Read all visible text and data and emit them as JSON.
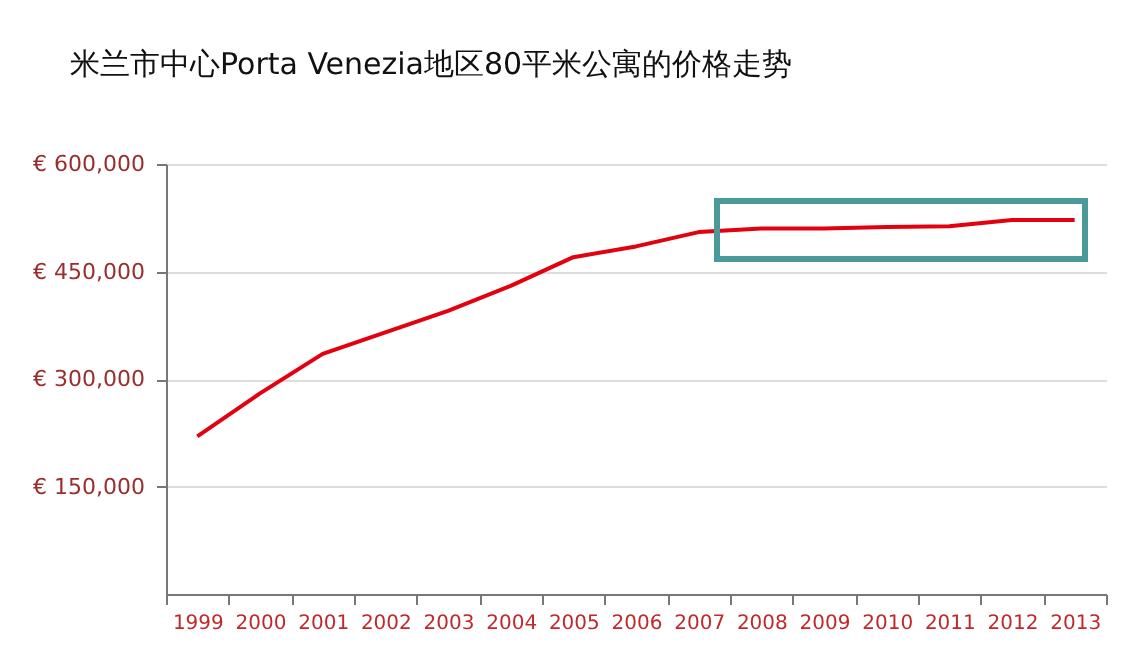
{
  "chart_data": {
    "type": "line",
    "title": "米兰市中心Porta Venezia地区80平米公寓的价格走势",
    "categories": [
      "1999",
      "2000",
      "2001",
      "2002",
      "2003",
      "2004",
      "2005",
      "2006",
      "2007",
      "2008",
      "2009",
      "2010",
      "2011",
      "2012",
      "2013"
    ],
    "series": [
      {
        "color": "#e3000f",
        "values": [
          220000,
          280000,
          335000,
          365000,
          395000,
          430000,
          470000,
          485000,
          505000,
          510000,
          510000,
          512000,
          513000,
          522000,
          522000
        ]
      }
    ],
    "ylim": [
      0,
      600000
    ],
    "yticks": [
      {
        "value": 150000,
        "label": "€ 150,000"
      },
      {
        "value": 300000,
        "label": "€ 300,000"
      },
      {
        "value": 450000,
        "label": "€ 450,000"
      },
      {
        "value": 600000,
        "label": "€ 600,000"
      }
    ],
    "grid": "y",
    "marker": "none",
    "line_style": "solid"
  }
}
